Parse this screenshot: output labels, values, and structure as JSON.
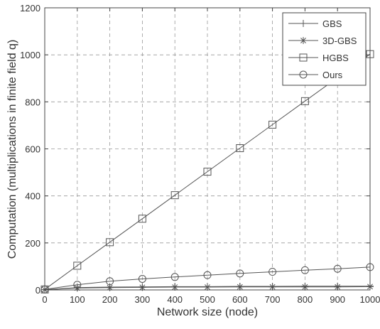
{
  "chart_data": {
    "type": "line",
    "title": "",
    "xlabel": "Network size (node)",
    "ylabel": "Computation (multiplications in finite field q)",
    "xlim": [
      0,
      1000
    ],
    "ylim": [
      0,
      1200
    ],
    "xticks": [
      0,
      100,
      200,
      300,
      400,
      500,
      600,
      700,
      800,
      900,
      1000
    ],
    "yticks": [
      0,
      200,
      400,
      600,
      800,
      1000,
      1200
    ],
    "grid": true,
    "legend_position": "top-right",
    "x": [
      0,
      100,
      200,
      300,
      400,
      500,
      600,
      700,
      800,
      900,
      1000
    ],
    "series": [
      {
        "name": "GBS",
        "marker": "plus",
        "color": "#555555",
        "values": [
          1,
          10,
          12,
          13,
          14,
          14,
          15,
          15,
          16,
          16,
          16
        ]
      },
      {
        "name": "3D-GBS",
        "marker": "asterisk",
        "color": "#555555",
        "values": [
          1,
          8,
          10,
          11,
          12,
          12,
          13,
          13,
          13,
          13,
          14
        ]
      },
      {
        "name": "HGBS",
        "marker": "square",
        "color": "#555555",
        "values": [
          2,
          103,
          203,
          303,
          403,
          503,
          603,
          703,
          803,
          903,
          1003
        ]
      },
      {
        "name": "Ours",
        "marker": "circle",
        "color": "#555555",
        "values": [
          2,
          22,
          37,
          47,
          55,
          63,
          70,
          77,
          84,
          90,
          97
        ]
      }
    ]
  }
}
